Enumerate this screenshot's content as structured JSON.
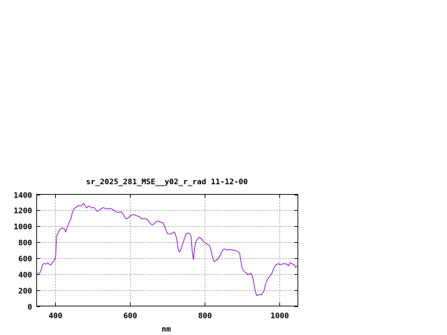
{
  "chart_data": {
    "type": "line",
    "title": "sr_2025_281_MSE__y02_r_rad 11-12-00",
    "xlabel": "nm",
    "ylabel": "",
    "xlim": [
      350,
      1050
    ],
    "ylim": [
      0,
      1400
    ],
    "xticks": [
      400,
      600,
      800,
      1000
    ],
    "yticks": [
      0,
      200,
      400,
      600,
      800,
      1000,
      1200,
      1400
    ],
    "grid": true,
    "legend": "none",
    "line_color": "#9400d3",
    "series": [
      {
        "x": [
          350,
          358,
          362,
          366,
          370,
          375,
          380,
          385,
          388,
          392,
          398,
          401,
          403,
          408,
          412,
          418,
          424,
          428,
          432,
          438,
          442,
          446,
          450,
          456,
          462,
          468,
          472,
          476,
          480,
          484,
          488,
          492,
          498,
          503,
          507,
          512,
          517,
          523,
          528,
          533,
          540,
          545,
          550,
          557,
          563,
          570,
          577,
          582,
          587,
          592,
          597,
          603,
          610,
          615,
          622,
          627,
          632,
          638,
          643,
          648,
          653,
          658,
          663,
          668,
          673,
          678,
          683,
          688,
          692,
          696,
          700,
          705,
          710,
          715,
          718,
          722,
          726,
          729,
          732,
          735,
          740,
          745,
          750,
          755,
          760,
          764,
          767,
          770,
          773,
          777,
          782,
          787,
          792,
          797,
          802,
          807,
          812,
          815,
          818,
          822,
          826,
          830,
          835,
          840,
          845,
          850,
          855,
          860,
          866,
          872,
          878,
          884,
          890,
          894,
          897,
          900,
          905,
          910,
          916,
          920,
          924,
          928,
          932,
          936,
          940,
          944,
          948,
          952,
          956,
          960,
          963,
          968,
          974,
          979,
          983,
          987,
          992,
          998,
          1004,
          1010,
          1016,
          1020,
          1025,
          1030,
          1036,
          1040,
          1044,
          1050
        ],
        "y": [
          405,
          415,
          450,
          520,
          535,
          525,
          540,
          520,
          515,
          545,
          575,
          620,
          870,
          920,
          960,
          980,
          970,
          930,
          990,
          1060,
          1100,
          1180,
          1220,
          1240,
          1260,
          1255,
          1270,
          1285,
          1260,
          1230,
          1250,
          1250,
          1230,
          1235,
          1220,
          1185,
          1200,
          1220,
          1235,
          1225,
          1220,
          1225,
          1220,
          1200,
          1180,
          1175,
          1180,
          1150,
          1105,
          1095,
          1110,
          1140,
          1145,
          1140,
          1125,
          1115,
          1090,
          1095,
          1095,
          1075,
          1045,
          1020,
          1020,
          1050,
          1065,
          1060,
          1050,
          1045,
          1010,
          960,
          910,
          905,
          905,
          920,
          930,
          900,
          820,
          720,
          680,
          690,
          760,
          830,
          900,
          915,
          910,
          870,
          680,
          580,
          720,
          810,
          850,
          860,
          840,
          810,
          790,
          775,
          765,
          740,
          680,
          600,
          555,
          570,
          590,
          620,
          670,
          710,
          715,
          700,
          710,
          705,
          700,
          695,
          680,
          660,
          570,
          480,
          440,
          420,
          395,
          400,
          410,
          380,
          280,
          180,
          130,
          140,
          145,
          140,
          165,
          200,
          270,
          330,
          370,
          400,
          440,
          490,
          520,
          530,
          520,
          530,
          530,
          525,
          505,
          545,
          525,
          520,
          485,
          510
        ]
      }
    ]
  }
}
